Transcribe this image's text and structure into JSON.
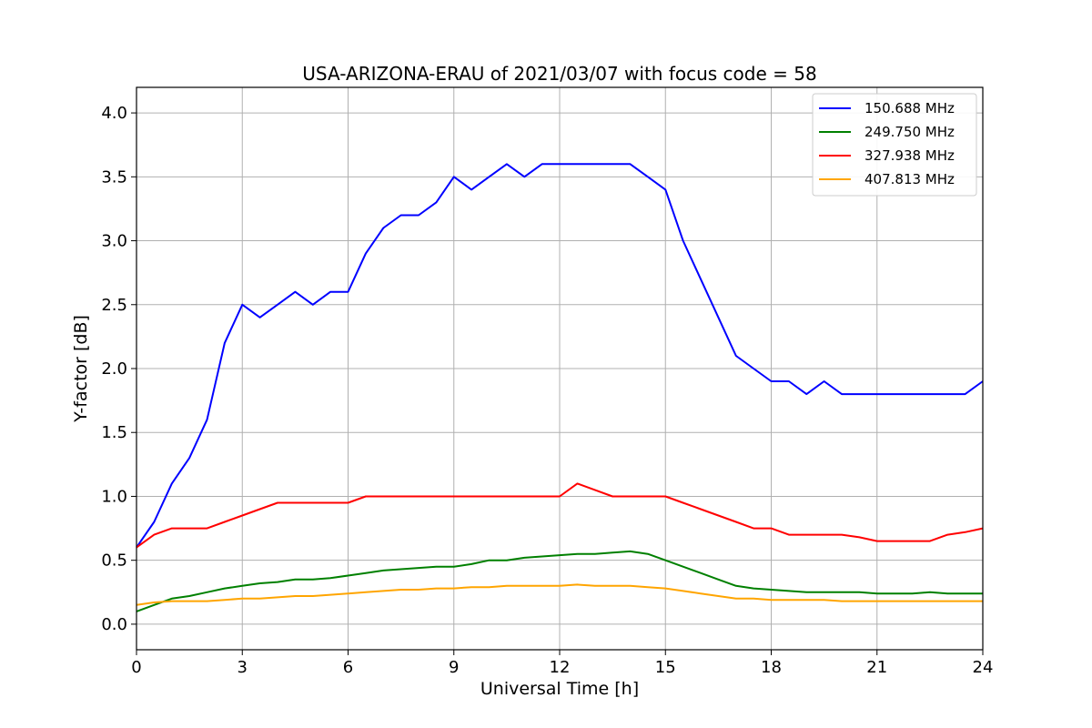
{
  "chart_data": {
    "type": "line",
    "title": "USA-ARIZONA-ERAU of 2021/03/07 with focus code = 58",
    "xlabel": "Universal Time [h]",
    "ylabel": "Y-factor [dB]",
    "xlim": [
      0,
      24
    ],
    "ylim": [
      -0.2,
      4.2
    ],
    "xticks": [
      "0",
      "3",
      "6",
      "9",
      "12",
      "15",
      "18",
      "21",
      "24"
    ],
    "yticks": [
      "0.0",
      "0.5",
      "1.0",
      "1.5",
      "2.0",
      "2.5",
      "3.0",
      "3.5",
      "4.0"
    ],
    "grid": true,
    "legend_position": "top-right",
    "series": [
      {
        "name": "150.688 MHz",
        "color": "#0000ff",
        "x": [
          0,
          0.5,
          1,
          1.5,
          2,
          2.5,
          3,
          3.5,
          4,
          4.5,
          5,
          5.5,
          6,
          6.5,
          7,
          7.5,
          8,
          8.5,
          9,
          9.5,
          10,
          10.5,
          11,
          11.5,
          12,
          12.5,
          13,
          13.5,
          14,
          14.5,
          15,
          15.5,
          16,
          16.5,
          17,
          17.5,
          18,
          18.5,
          19,
          19.5,
          20,
          20.5,
          21,
          21.5,
          22,
          22.5,
          23,
          23.5,
          24
        ],
        "y": [
          0.6,
          0.8,
          1.1,
          1.3,
          1.6,
          2.2,
          2.5,
          2.4,
          2.5,
          2.6,
          2.5,
          2.6,
          2.6,
          2.9,
          3.1,
          3.2,
          3.2,
          3.3,
          3.5,
          3.4,
          3.5,
          3.6,
          3.5,
          3.6,
          3.6,
          3.6,
          3.6,
          3.6,
          3.6,
          3.5,
          3.4,
          3.0,
          2.7,
          2.4,
          2.1,
          2.0,
          1.9,
          1.9,
          1.8,
          1.9,
          1.8,
          1.8,
          1.8,
          1.8,
          1.8,
          1.8,
          1.8,
          1.8,
          1.9
        ]
      },
      {
        "name": "249.750 MHz",
        "color": "#008000",
        "x": [
          0,
          0.5,
          1,
          1.5,
          2,
          2.5,
          3,
          3.5,
          4,
          4.5,
          5,
          5.5,
          6,
          6.5,
          7,
          7.5,
          8,
          8.5,
          9,
          9.5,
          10,
          10.5,
          11,
          11.5,
          12,
          12.5,
          13,
          13.5,
          14,
          14.5,
          15,
          15.5,
          16,
          16.5,
          17,
          17.5,
          18,
          18.5,
          19,
          19.5,
          20,
          20.5,
          21,
          21.5,
          22,
          22.5,
          23,
          23.5,
          24
        ],
        "y": [
          0.1,
          0.15,
          0.2,
          0.22,
          0.25,
          0.28,
          0.3,
          0.32,
          0.33,
          0.35,
          0.35,
          0.36,
          0.38,
          0.4,
          0.42,
          0.43,
          0.44,
          0.45,
          0.45,
          0.47,
          0.5,
          0.5,
          0.52,
          0.53,
          0.54,
          0.55,
          0.55,
          0.56,
          0.57,
          0.55,
          0.5,
          0.45,
          0.4,
          0.35,
          0.3,
          0.28,
          0.27,
          0.26,
          0.25,
          0.25,
          0.25,
          0.25,
          0.24,
          0.24,
          0.24,
          0.25,
          0.24,
          0.24,
          0.24
        ]
      },
      {
        "name": "327.938 MHz",
        "color": "#ff0000",
        "x": [
          0,
          0.5,
          1,
          1.5,
          2,
          2.5,
          3,
          3.5,
          4,
          4.5,
          5,
          5.5,
          6,
          6.5,
          7,
          7.5,
          8,
          8.5,
          9,
          9.5,
          10,
          10.5,
          11,
          11.5,
          12,
          12.5,
          13,
          13.5,
          14,
          14.5,
          15,
          15.5,
          16,
          16.5,
          17,
          17.5,
          18,
          18.5,
          19,
          19.5,
          20,
          20.5,
          21,
          21.5,
          22,
          22.5,
          23,
          23.5,
          24
        ],
        "y": [
          0.6,
          0.7,
          0.75,
          0.75,
          0.75,
          0.8,
          0.85,
          0.9,
          0.95,
          0.95,
          0.95,
          0.95,
          0.95,
          1.0,
          1.0,
          1.0,
          1.0,
          1.0,
          1.0,
          1.0,
          1.0,
          1.0,
          1.0,
          1.0,
          1.0,
          1.1,
          1.05,
          1.0,
          1.0,
          1.0,
          1.0,
          0.95,
          0.9,
          0.85,
          0.8,
          0.75,
          0.75,
          0.7,
          0.7,
          0.7,
          0.7,
          0.68,
          0.65,
          0.65,
          0.65,
          0.65,
          0.7,
          0.72,
          0.75
        ]
      },
      {
        "name": "407.813 MHz",
        "color": "#ffa500",
        "x": [
          0,
          0.5,
          1,
          1.5,
          2,
          2.5,
          3,
          3.5,
          4,
          4.5,
          5,
          5.5,
          6,
          6.5,
          7,
          7.5,
          8,
          8.5,
          9,
          9.5,
          10,
          10.5,
          11,
          11.5,
          12,
          12.5,
          13,
          13.5,
          14,
          14.5,
          15,
          15.5,
          16,
          16.5,
          17,
          17.5,
          18,
          18.5,
          19,
          19.5,
          20,
          20.5,
          21,
          21.5,
          22,
          22.5,
          23,
          23.5,
          24
        ],
        "y": [
          0.15,
          0.17,
          0.18,
          0.18,
          0.18,
          0.19,
          0.2,
          0.2,
          0.21,
          0.22,
          0.22,
          0.23,
          0.24,
          0.25,
          0.26,
          0.27,
          0.27,
          0.28,
          0.28,
          0.29,
          0.29,
          0.3,
          0.3,
          0.3,
          0.3,
          0.31,
          0.3,
          0.3,
          0.3,
          0.29,
          0.28,
          0.26,
          0.24,
          0.22,
          0.2,
          0.2,
          0.19,
          0.19,
          0.19,
          0.19,
          0.18,
          0.18,
          0.18,
          0.18,
          0.18,
          0.18,
          0.18,
          0.18,
          0.18
        ]
      }
    ]
  }
}
